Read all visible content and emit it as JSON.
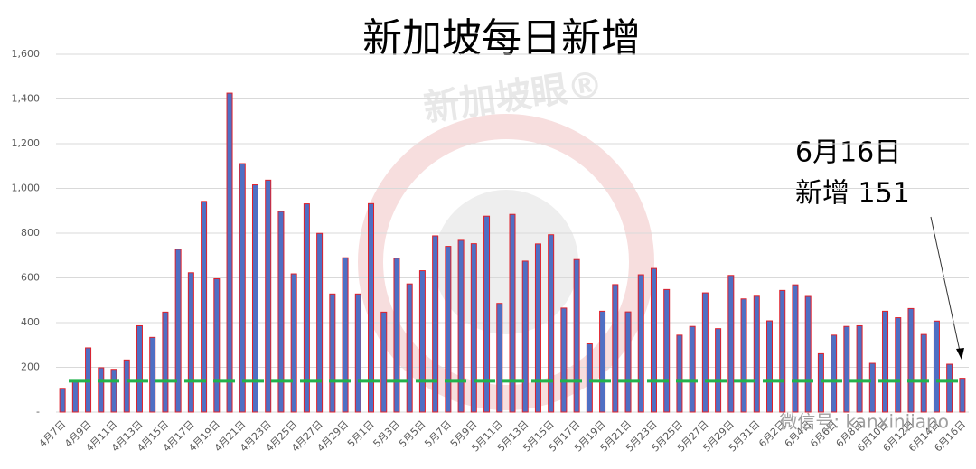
{
  "chart_data": {
    "type": "bar",
    "title": "新加坡每日新增",
    "annotation_lines": [
      "6月16日",
      "新增 151"
    ],
    "watermarks": [
      "新加坡眼®",
      "微信号: kanxinjiapo"
    ],
    "categories": [
      "4月7日",
      null,
      "4月9日",
      null,
      "4月11日",
      null,
      "4月13日",
      null,
      "4月15日",
      null,
      "4月17日",
      null,
      "4月19日",
      null,
      "4月21日",
      null,
      "4月23日",
      null,
      "4月25日",
      null,
      "4月27日",
      null,
      "4月29日",
      null,
      "5月1日",
      null,
      "5月3日",
      null,
      "5月5日",
      null,
      "5月7日",
      null,
      "5月9日",
      null,
      "5月11日",
      null,
      "5月13日",
      null,
      "5月15日",
      null,
      "5月17日",
      null,
      "5月19日",
      null,
      "5月21日",
      null,
      "5月23日",
      null,
      "5月25日",
      null,
      "5月27日",
      null,
      "5月29日",
      null,
      "5月31日",
      null,
      "6月2日",
      null,
      "6月4日",
      null,
      "6月6日",
      null,
      "6月8日",
      null,
      "6月10日",
      null,
      "6月12日",
      null,
      "6月14日",
      null,
      "6月16日"
    ],
    "values": [
      106,
      142,
      287,
      198,
      191,
      233,
      386,
      334,
      447,
      728,
      623,
      942,
      596,
      1426,
      1111,
      1016,
      1037,
      897,
      618,
      931,
      799,
      528,
      690,
      528,
      932,
      447,
      688,
      573,
      632,
      788,
      741,
      768,
      753,
      876,
      486,
      884,
      675,
      752,
      793,
      465,
      682,
      305,
      451,
      570,
      448,
      614,
      642,
      548,
      344,
      383,
      533,
      373,
      611,
      506,
      518,
      408,
      544,
      569,
      517,
      261,
      344,
      383,
      386,
      218,
      451,
      422,
      463,
      347,
      407,
      214,
      151
    ],
    "color": "#4f6fc4",
    "edge_color": "#e0202a",
    "reference_line": {
      "value": 140,
      "color": "#22b24c"
    },
    "ylim": [
      0,
      1600
    ],
    "yticks": [
      {
        "value": 0,
        "label": "-"
      },
      200,
      400,
      600,
      800,
      {
        "value": 1000,
        "label": "1,000"
      },
      {
        "value": 1200,
        "label": "1,200"
      },
      {
        "value": 1400,
        "label": "1,400"
      },
      {
        "value": 1600,
        "label": "1,600"
      }
    ],
    "grid": true
  }
}
